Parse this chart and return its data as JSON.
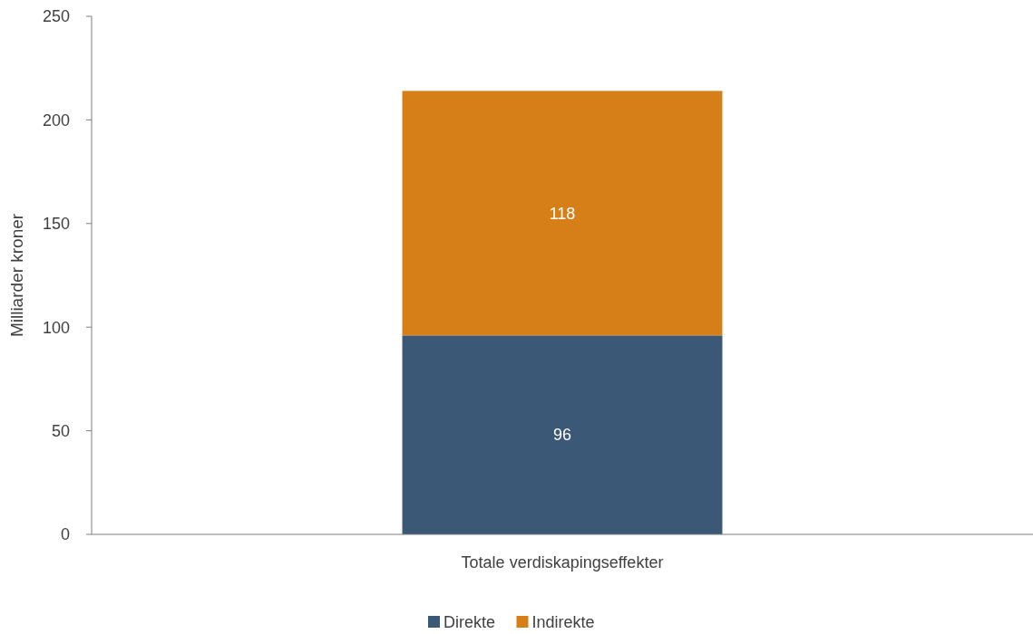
{
  "chart_data": {
    "type": "bar",
    "stacked": true,
    "ylabel": "Milliarder kroner",
    "categories": [
      "Totale verdiskapingseffekter"
    ],
    "series": [
      {
        "name": "Direkte",
        "color": "#3b5876",
        "values": [
          96
        ]
      },
      {
        "name": "Indirekte",
        "color": "#d67e17",
        "values": [
          118
        ]
      }
    ],
    "ylim": [
      0,
      250
    ],
    "yticks": [
      0,
      50,
      100,
      150,
      200,
      250
    ],
    "data_labels": true,
    "legend": "bottom",
    "grid": false
  }
}
